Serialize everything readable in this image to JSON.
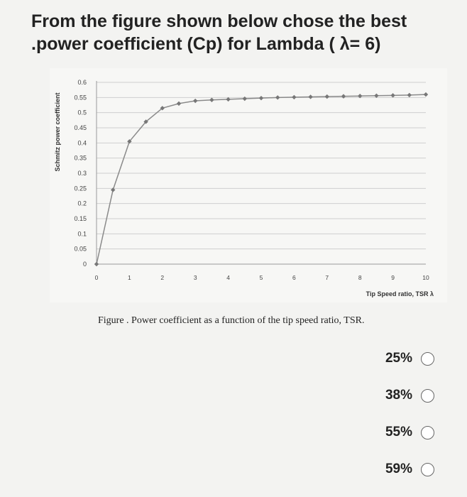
{
  "question": {
    "line1": "From the figure shown below chose the best",
    "line2": ".power coefficient (Cp) for Lambda ( λ= 6)"
  },
  "caption": "Figure . Power coefficient as a function of the tip speed ratio, TSR.",
  "options": [
    {
      "label": "25%"
    },
    {
      "label": "38%"
    },
    {
      "label": "55%"
    },
    {
      "label": "59%"
    }
  ],
  "chart_data": {
    "type": "line",
    "xlabel": "Tip Speed ratio, TSR λ",
    "ylabel": "Schmitz power coefficient",
    "xlim": [
      0,
      10
    ],
    "ylim": [
      0,
      0.6
    ],
    "x_ticks": [
      "0",
      "1",
      "2",
      "3",
      "4",
      "5",
      "6",
      "7",
      "8",
      "9",
      "10"
    ],
    "y_ticks": [
      "0",
      "0.05",
      "0.1",
      "0.15",
      "0.2",
      "0.25",
      "0.3",
      "0.35",
      "0.4",
      "0.45",
      "0.5",
      "0.55",
      "0.6"
    ],
    "grid": true,
    "colors": {
      "line": "#8a8a8a",
      "marker": "#777777",
      "grid": "#cfcfcf"
    },
    "series": [
      {
        "x": [
          0,
          0.5,
          1.0,
          1.5,
          2.0,
          2.5,
          3.0,
          3.5,
          4.0,
          4.5,
          5.0,
          5.5,
          6.0,
          6.5,
          7.0,
          7.5,
          8.0,
          8.5,
          9.0,
          9.5,
          10.0
        ],
        "y": [
          0,
          0.245,
          0.405,
          0.47,
          0.515,
          0.53,
          0.539,
          0.542,
          0.544,
          0.546,
          0.548,
          0.55,
          0.551,
          0.552,
          0.553,
          0.554,
          0.555,
          0.556,
          0.557,
          0.558,
          0.56
        ]
      }
    ]
  }
}
